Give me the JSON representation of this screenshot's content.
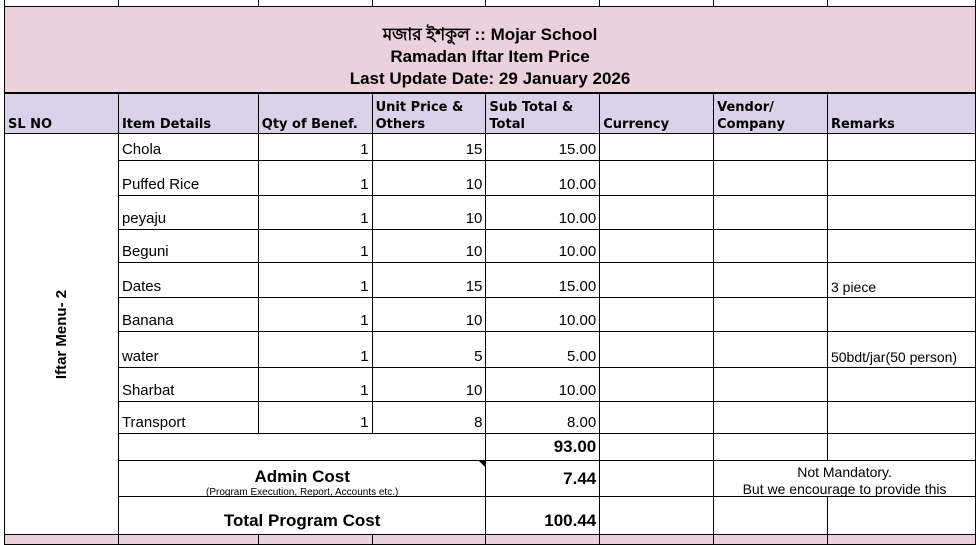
{
  "title": {
    "line1": "মজার ইশকুল :: Mojar School",
    "line2": "Ramadan Iftar Item Price",
    "line3": "Last Update Date: 29 January 2026"
  },
  "headers": [
    "SL NO",
    "Item Details",
    "Qty of Benef.",
    "Unit Price & Others",
    "Sub Total & Total",
    "Currency",
    "Vendor/ Company",
    "Remarks"
  ],
  "group_label": "Iftar Menu- 2",
  "rows": [
    {
      "item": "Chola",
      "qty": "1",
      "unit": "15",
      "sub": "15.00",
      "remarks": ""
    },
    {
      "item": "Puffed Rice",
      "qty": "1",
      "unit": "10",
      "sub": "10.00",
      "remarks": ""
    },
    {
      "item": "peyaju",
      "qty": "1",
      "unit": "10",
      "sub": "10.00",
      "remarks": ""
    },
    {
      "item": "Beguni",
      "qty": "1",
      "unit": "10",
      "sub": "10.00",
      "remarks": ""
    },
    {
      "item": "Dates",
      "qty": "1",
      "unit": "15",
      "sub": "15.00",
      "remarks": "3 piece"
    },
    {
      "item": "Banana",
      "qty": "1",
      "unit": "10",
      "sub": "10.00",
      "remarks": ""
    },
    {
      "item": "water",
      "qty": "1",
      "unit": "5",
      "sub": "5.00",
      "remarks": "50bdt/jar(50 person)"
    },
    {
      "item": "Sharbat",
      "qty": "1",
      "unit": "10",
      "sub": "10.00",
      "remarks": ""
    },
    {
      "item": "Transport",
      "qty": "1",
      "unit": "8",
      "sub": "8.00",
      "remarks": ""
    }
  ],
  "subtotal": "93.00",
  "admin": {
    "label": "Admin Cost",
    "sublabel": "(Program Execution, Report, Accounts etc.)",
    "value": "7.44",
    "note1": "Not Mandatory.",
    "note2": "But we encourage to provide this"
  },
  "total": {
    "label": "Total Program Cost",
    "value": "100.44"
  },
  "colors": {
    "title_bg": "#ead1dc",
    "header_bg": "#d9d2e9"
  }
}
